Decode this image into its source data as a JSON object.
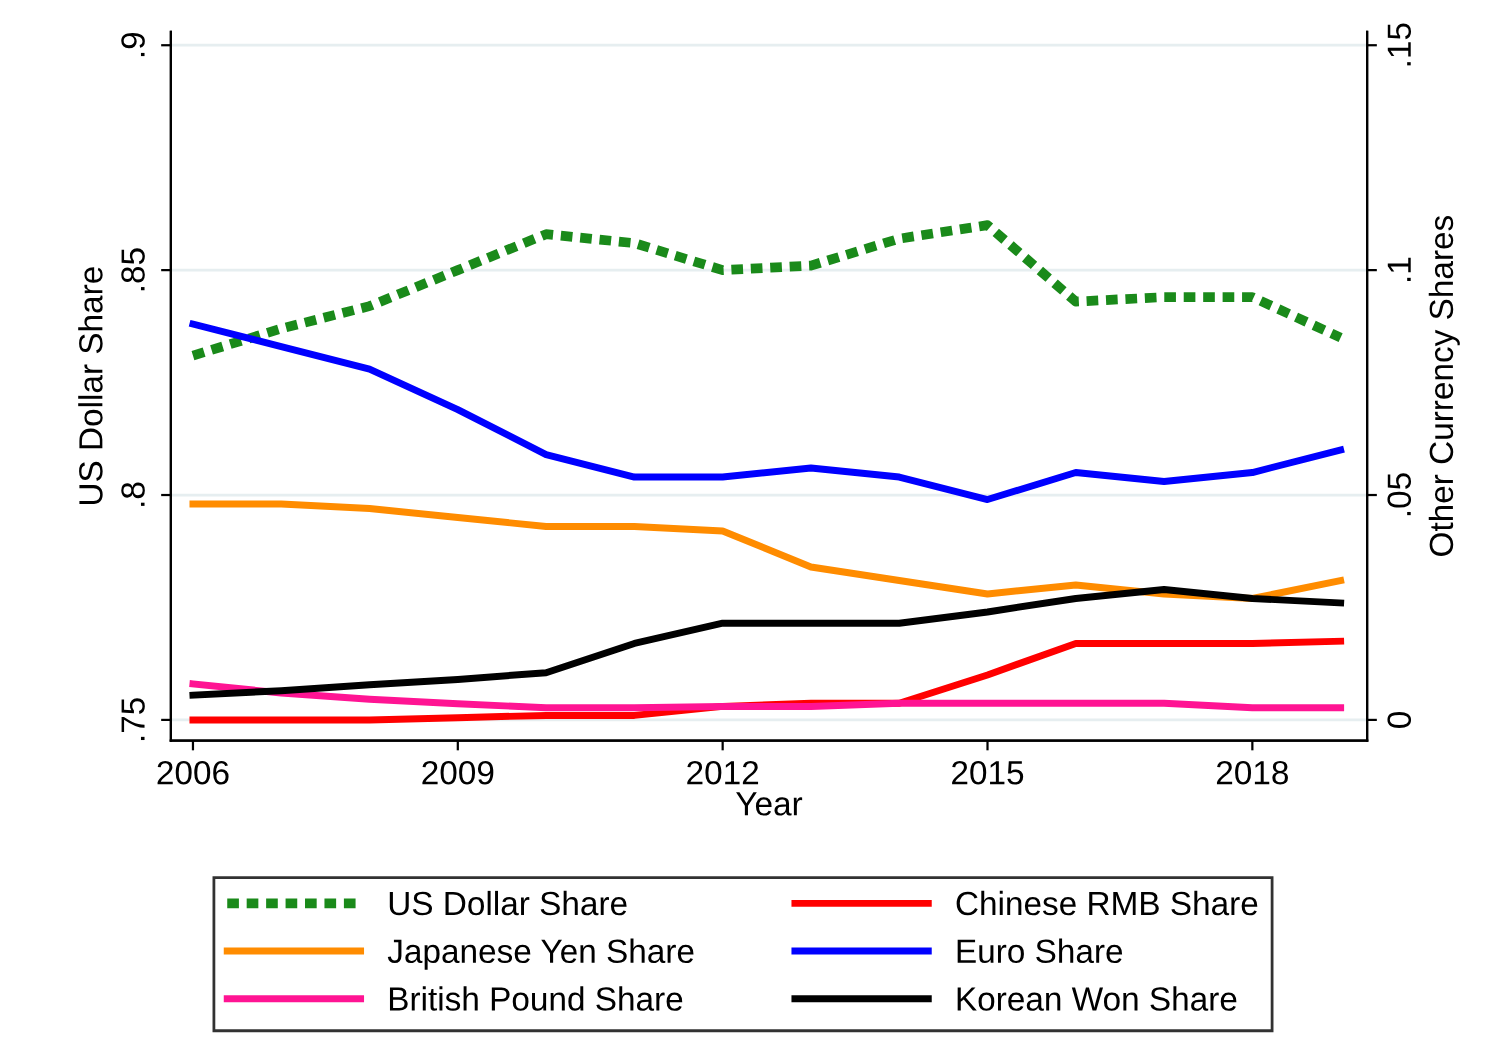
{
  "chart_data": {
    "type": "line",
    "xlabel": "Year",
    "ylabel": "US Dollar Share",
    "y2label": "Other Currency Shares",
    "x": [
      2006,
      2007,
      2008,
      2009,
      2010,
      2011,
      2012,
      2013,
      2014,
      2015,
      2016,
      2017,
      2018,
      2019
    ],
    "series": [
      {
        "name": "US Dollar Share",
        "color": "#1a8a1a",
        "line_style": "dotted",
        "values": [
          0.831,
          0.837,
          0.842,
          0.85,
          0.858,
          0.856,
          0.85,
          0.851,
          0.857,
          0.86,
          0.843,
          0.844,
          0.844,
          0.835
        ]
      },
      {
        "name": "Chinese RMB Share",
        "color": "#ff0000",
        "axis": "y2",
        "values": [
          0.0,
          0.0,
          0.0,
          0.0005,
          0.001,
          0.001,
          0.003,
          0.0037,
          0.0037,
          0.01,
          0.017,
          0.017,
          0.017,
          0.0175
        ]
      },
      {
        "name": "Japanese Yen Share",
        "color": "#ff8c00",
        "axis": "y2",
        "values": [
          0.048,
          0.048,
          0.047,
          0.045,
          0.043,
          0.043,
          0.042,
          0.034,
          0.031,
          0.028,
          0.03,
          0.028,
          0.027,
          0.031
        ]
      },
      {
        "name": "Euro Share",
        "color": "#0000ff",
        "axis": "y2",
        "values": [
          0.088,
          0.083,
          0.078,
          0.069,
          0.059,
          0.054,
          0.054,
          0.056,
          0.054,
          0.049,
          0.055,
          0.053,
          0.055,
          0.06
        ]
      },
      {
        "name": "British Pound Share",
        "color": "#ff1493",
        "axis": "y2",
        "values": [
          0.008,
          0.006,
          0.0046,
          0.0036,
          0.0027,
          0.0027,
          0.003,
          0.003,
          0.0037,
          0.0037,
          0.0037,
          0.0037,
          0.0027,
          0.0027
        ]
      },
      {
        "name": "Korean Won Share",
        "color": "#000000",
        "axis": "y2",
        "values": [
          0.0055,
          0.0065,
          0.0078,
          0.009,
          0.0105,
          0.017,
          0.0215,
          0.0215,
          0.0215,
          0.024,
          0.027,
          0.029,
          0.027,
          0.026
        ]
      }
    ],
    "xlim": [
      2005.75,
      2019.3
    ],
    "xticks": [
      2006,
      2009,
      2012,
      2015,
      2018
    ],
    "ylim": [
      0.7454,
      0.903
    ],
    "yticks": [
      {
        "value": 0.75,
        "label": ".75"
      },
      {
        "value": 0.8,
        "label": ".8"
      },
      {
        "value": 0.85,
        "label": ".85"
      },
      {
        "value": 0.9,
        "label": ".9"
      }
    ],
    "y2lim": [
      -0.0046,
      0.153
    ],
    "y2ticks": [
      0,
      {
        "value": 0.05,
        "label": ".05"
      },
      {
        "value": 0.1,
        "label": ".1"
      },
      {
        "value": 0.15,
        "label": ".15"
      }
    ],
    "grid": "y",
    "legend": "bottom",
    "line_style": "solid",
    "marker": "none"
  }
}
